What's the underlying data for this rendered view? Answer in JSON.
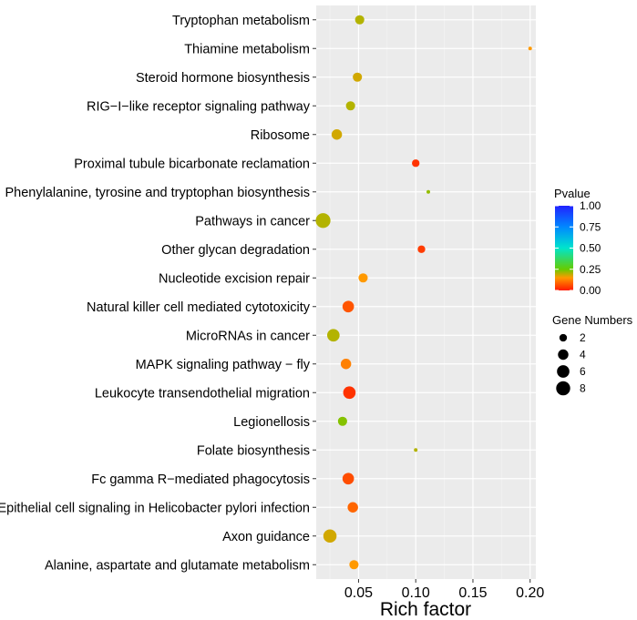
{
  "chart_data": {
    "type": "scatter",
    "xlabel": "Rich factor",
    "xlim": [
      0.013,
      0.205
    ],
    "xticks": [
      0.05,
      0.1,
      0.15,
      0.2
    ],
    "xtick_labels": [
      "0.05",
      "0.10",
      "0.15",
      "0.20"
    ],
    "grid": true,
    "panel_background": "#ebebeb",
    "categories": [
      "Alanine, aspartate and glutamate metabolism",
      "Axon guidance",
      "Epithelial cell signaling in Helicobacter pylori infection",
      "Fc gamma R−mediated phagocytosis",
      "Folate biosynthesis",
      "Legionellosis",
      "Leukocyte transendothelial migration",
      "MAPK signaling pathway − fly",
      "MicroRNAs in cancer",
      "Natural killer cell mediated cytotoxicity",
      "Nucleotide excision repair",
      "Other glycan degradation",
      "Pathways in cancer",
      "Phenylalanine, tyrosine and tryptophan biosynthesis",
      "Proximal tubule bicarbonate reclamation",
      "Ribosome",
      "RIG−I−like receptor signaling pathway",
      "Steroid hormone biosynthesis",
      "Thiamine metabolism",
      "Tryptophan metabolism"
    ],
    "points": [
      {
        "term": "Alanine, aspartate and glutamate metabolism",
        "rich_factor": 0.046,
        "genes": 3,
        "pvalue": 0.15
      },
      {
        "term": "Axon guidance",
        "rich_factor": 0.025,
        "genes": 7,
        "pvalue": 0.18
      },
      {
        "term": "Epithelial cell signaling in Helicobacter pylori infection",
        "rich_factor": 0.045,
        "genes": 4,
        "pvalue": 0.09
      },
      {
        "term": "Fc gamma R−mediated phagocytosis",
        "rich_factor": 0.041,
        "genes": 5,
        "pvalue": 0.06
      },
      {
        "term": "Folate biosynthesis",
        "rich_factor": 0.1,
        "genes": 1,
        "pvalue": 0.2
      },
      {
        "term": "Legionellosis",
        "rich_factor": 0.036,
        "genes": 3,
        "pvalue": 0.23
      },
      {
        "term": "Leukocyte transendothelial migration",
        "rich_factor": 0.042,
        "genes": 6,
        "pvalue": 0.03
      },
      {
        "term": "MAPK signaling pathway − fly",
        "rich_factor": 0.039,
        "genes": 4,
        "pvalue": 0.12
      },
      {
        "term": "MicroRNAs in cancer",
        "rich_factor": 0.028,
        "genes": 6,
        "pvalue": 0.2
      },
      {
        "term": "Natural killer cell mediated cytotoxicity",
        "rich_factor": 0.041,
        "genes": 5,
        "pvalue": 0.07
      },
      {
        "term": "Nucleotide excision repair",
        "rich_factor": 0.054,
        "genes": 3,
        "pvalue": 0.15
      },
      {
        "term": "Other glycan degradation",
        "rich_factor": 0.105,
        "genes": 2,
        "pvalue": 0.04
      },
      {
        "term": "Pathways in cancer",
        "rich_factor": 0.019,
        "genes": 9,
        "pvalue": 0.2
      },
      {
        "term": "Phenylalanine, tyrosine and tryptophan biosynthesis",
        "rich_factor": 0.111,
        "genes": 1,
        "pvalue": 0.22
      },
      {
        "term": "Proximal tubule bicarbonate reclamation",
        "rich_factor": 0.1,
        "genes": 2,
        "pvalue": 0.03
      },
      {
        "term": "Ribosome",
        "rich_factor": 0.031,
        "genes": 4,
        "pvalue": 0.18
      },
      {
        "term": "RIG−I−like receptor signaling pathway",
        "rich_factor": 0.043,
        "genes": 3,
        "pvalue": 0.2
      },
      {
        "term": "Steroid hormone biosynthesis",
        "rich_factor": 0.049,
        "genes": 3,
        "pvalue": 0.18
      },
      {
        "term": "Thiamine metabolism",
        "rich_factor": 0.2,
        "genes": 1,
        "pvalue": 0.15
      },
      {
        "term": "Tryptophan metabolism",
        "rich_factor": 0.051,
        "genes": 3,
        "pvalue": 0.2
      }
    ],
    "color_legend": {
      "title": "Pvalue",
      "range": [
        0,
        1
      ],
      "ticks": [
        1.0,
        0.75,
        0.5,
        0.25,
        0.0
      ],
      "tick_labels": [
        "1.00",
        "0.75",
        "0.50",
        "0.25",
        "0.00"
      ],
      "gradient": [
        {
          "v": 0.0,
          "color": "#ff1a00"
        },
        {
          "v": 0.15,
          "color": "#ff9900"
        },
        {
          "v": 0.25,
          "color": "#66cc00"
        },
        {
          "v": 0.5,
          "color": "#00e5cc"
        },
        {
          "v": 0.75,
          "color": "#0088ff"
        },
        {
          "v": 1.0,
          "color": "#2222ff"
        }
      ]
    },
    "size_legend": {
      "title": "Gene Numbers",
      "values": [
        2,
        4,
        6,
        8
      ],
      "labels": [
        "2",
        "4",
        "6",
        "8"
      ]
    }
  }
}
